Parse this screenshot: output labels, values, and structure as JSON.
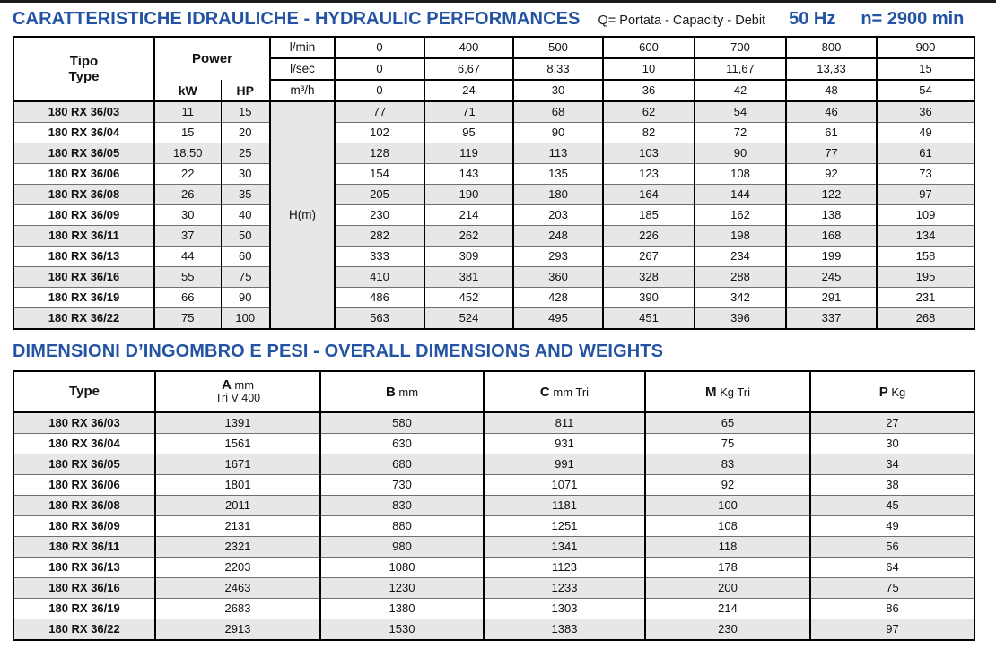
{
  "page": {
    "title1": "CARATTERISTICHE IDRAULICHE - HYDRAULIC PERFORMANCES",
    "subtitle": "Q= Portata - Capacity - Debit",
    "frequency": "50 Hz",
    "speed": "n= 2900 min",
    "title2": "DIMENSIONI D’INGOMBRO E PESI - OVERALL DIMENSIONS AND WEIGHTS"
  },
  "colors": {
    "accent": "#2353a3",
    "row_alt": "#e7e7e7",
    "border": "#000000"
  },
  "hydraulic_table": {
    "type_header": [
      "Tipo",
      "Type"
    ],
    "power_header": "Power",
    "power_units": [
      "kW",
      "HP"
    ],
    "flow_rows": [
      {
        "unit": "l/min",
        "values": [
          "0",
          "400",
          "500",
          "600",
          "700",
          "800",
          "900"
        ]
      },
      {
        "unit": "l/sec",
        "values": [
          "0",
          "6,67",
          "8,33",
          "10",
          "11,67",
          "13,33",
          "15"
        ]
      },
      {
        "unit": "m³/h",
        "values": [
          "0",
          "24",
          "30",
          "36",
          "42",
          "48",
          "54"
        ]
      }
    ],
    "head_label": "H(m)",
    "rows": [
      {
        "type": "180 RX 36/03",
        "kw": "11",
        "hp": "15",
        "h": [
          "77",
          "71",
          "68",
          "62",
          "54",
          "46",
          "36"
        ]
      },
      {
        "type": "180 RX 36/04",
        "kw": "15",
        "hp": "20",
        "h": [
          "102",
          "95",
          "90",
          "82",
          "72",
          "61",
          "49"
        ]
      },
      {
        "type": "180 RX 36/05",
        "kw": "18,50",
        "hp": "25",
        "h": [
          "128",
          "119",
          "113",
          "103",
          "90",
          "77",
          "61"
        ]
      },
      {
        "type": "180 RX 36/06",
        "kw": "22",
        "hp": "30",
        "h": [
          "154",
          "143",
          "135",
          "123",
          "108",
          "92",
          "73"
        ]
      },
      {
        "type": "180 RX 36/08",
        "kw": "26",
        "hp": "35",
        "h": [
          "205",
          "190",
          "180",
          "164",
          "144",
          "122",
          "97"
        ]
      },
      {
        "type": "180 RX 36/09",
        "kw": "30",
        "hp": "40",
        "h": [
          "230",
          "214",
          "203",
          "185",
          "162",
          "138",
          "109"
        ]
      },
      {
        "type": "180 RX 36/11",
        "kw": "37",
        "hp": "50",
        "h": [
          "282",
          "262",
          "248",
          "226",
          "198",
          "168",
          "134"
        ]
      },
      {
        "type": "180 RX 36/13",
        "kw": "44",
        "hp": "60",
        "h": [
          "333",
          "309",
          "293",
          "267",
          "234",
          "199",
          "158"
        ]
      },
      {
        "type": "180 RX 36/16",
        "kw": "55",
        "hp": "75",
        "h": [
          "410",
          "381",
          "360",
          "328",
          "288",
          "245",
          "195"
        ]
      },
      {
        "type": "180 RX 36/19",
        "kw": "66",
        "hp": "90",
        "h": [
          "486",
          "452",
          "428",
          "390",
          "342",
          "291",
          "231"
        ]
      },
      {
        "type": "180 RX 36/22",
        "kw": "75",
        "hp": "100",
        "h": [
          "563",
          "524",
          "495",
          "451",
          "396",
          "337",
          "268"
        ]
      }
    ]
  },
  "dimensions_table": {
    "headers": [
      {
        "bold": "Type",
        "rest": "",
        "sub": ""
      },
      {
        "bold": "A",
        "rest": " mm",
        "sub": "Tri V 400"
      },
      {
        "bold": "B",
        "rest": " mm",
        "sub": ""
      },
      {
        "bold": "C",
        "rest": " mm Tri",
        "sub": ""
      },
      {
        "bold": "M",
        "rest": " Kg Tri",
        "sub": ""
      },
      {
        "bold": "P",
        "rest": " Kg",
        "sub": ""
      }
    ],
    "rows": [
      {
        "type": "180 RX 36/03",
        "values": [
          "1391",
          "580",
          "811",
          "65",
          "27"
        ]
      },
      {
        "type": "180 RX 36/04",
        "values": [
          "1561",
          "630",
          "931",
          "75",
          "30"
        ]
      },
      {
        "type": "180 RX 36/05",
        "values": [
          "1671",
          "680",
          "991",
          "83",
          "34"
        ]
      },
      {
        "type": "180 RX 36/06",
        "values": [
          "1801",
          "730",
          "1071",
          "92",
          "38"
        ]
      },
      {
        "type": "180 RX 36/08",
        "values": [
          "2011",
          "830",
          "1181",
          "100",
          "45"
        ]
      },
      {
        "type": "180 RX 36/09",
        "values": [
          "2131",
          "880",
          "1251",
          "108",
          "49"
        ]
      },
      {
        "type": "180 RX 36/11",
        "values": [
          "2321",
          "980",
          "1341",
          "118",
          "56"
        ]
      },
      {
        "type": "180 RX 36/13",
        "values": [
          "2203",
          "1080",
          "1123",
          "178",
          "64"
        ]
      },
      {
        "type": "180 RX 36/16",
        "values": [
          "2463",
          "1230",
          "1233",
          "200",
          "75"
        ]
      },
      {
        "type": "180 RX 36/19",
        "values": [
          "2683",
          "1380",
          "1303",
          "214",
          "86"
        ]
      },
      {
        "type": "180 RX 36/22",
        "values": [
          "2913",
          "1530",
          "1383",
          "230",
          "97"
        ]
      }
    ]
  }
}
